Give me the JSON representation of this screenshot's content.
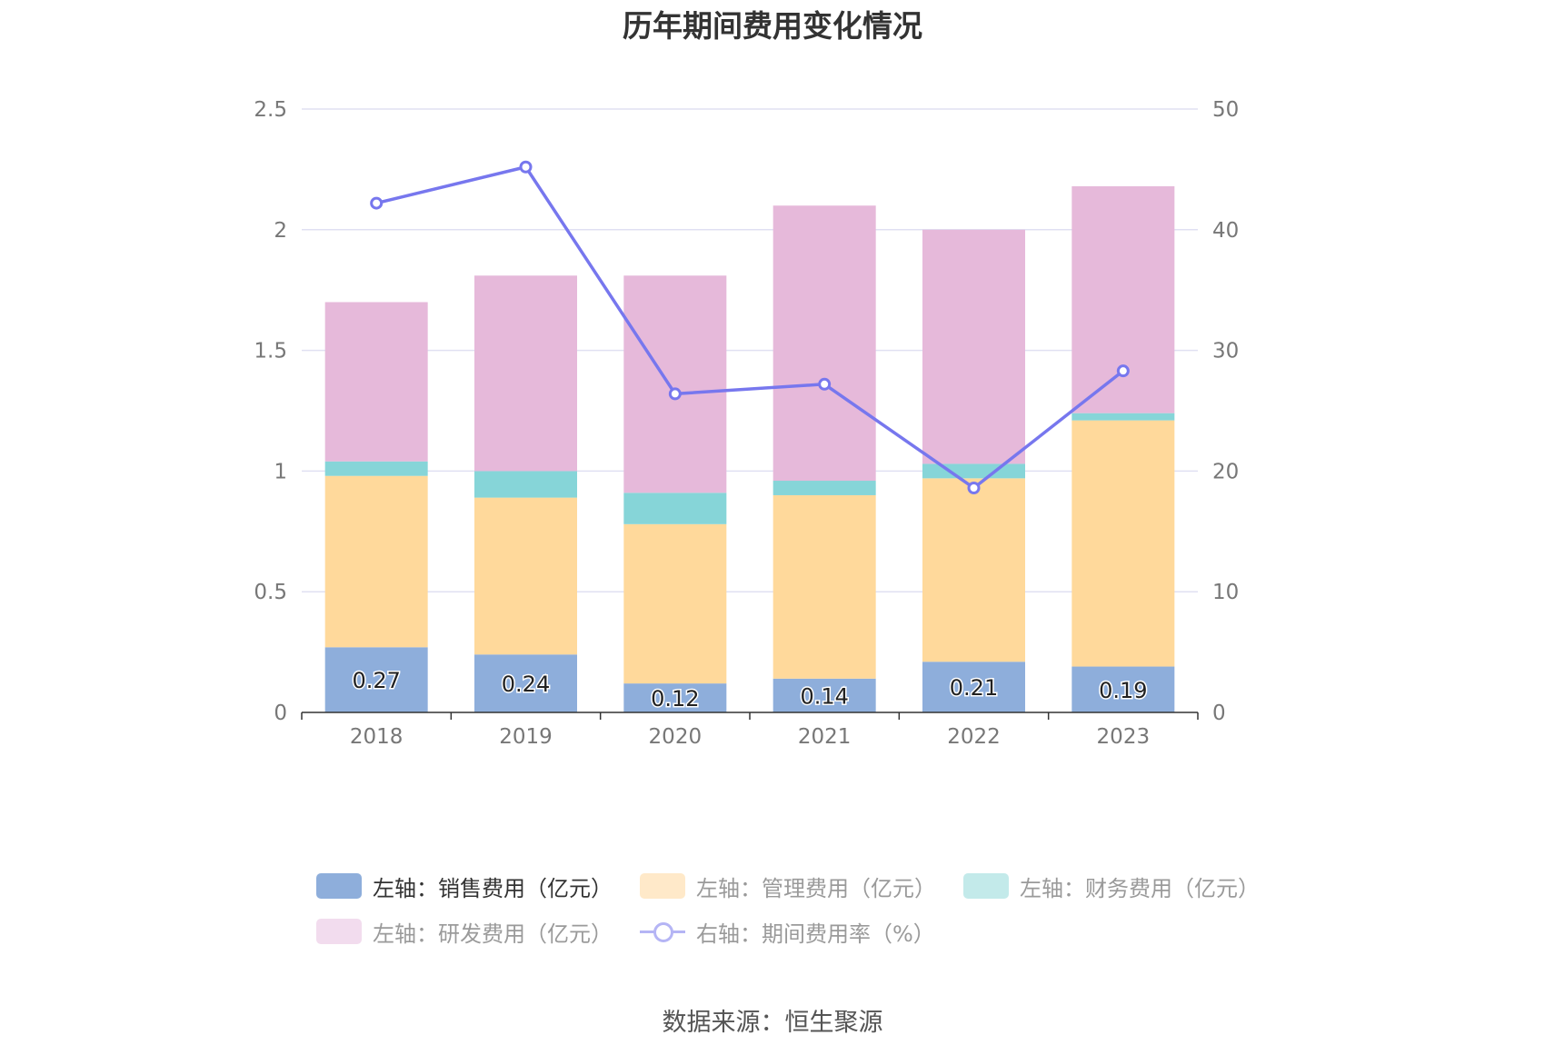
{
  "title": "历年期间费用变化情况",
  "source": "数据来源：恒生聚源",
  "colors": {
    "sales": "#8eaedb",
    "admin": "#ffd99b",
    "finance": "#86d5d8",
    "rnd": "#e6b9da",
    "rate": "#7777ee",
    "grid": "#e0e0f2",
    "axis": "#333333",
    "tick": "#777777"
  },
  "legend": [
    {
      "label": "左轴：销售费用（亿元）",
      "color": "#8eaedb",
      "kind": "bar",
      "dim": false
    },
    {
      "label": "左轴：管理费用（亿元）",
      "color": "#ffe9c9",
      "kind": "bar",
      "dim": true
    },
    {
      "label": "左轴：财务费用（亿元）",
      "color": "#c3eaea",
      "kind": "bar",
      "dim": true
    },
    {
      "label": "左轴：研发费用（亿元）",
      "color": "#f2dcee",
      "kind": "bar",
      "dim": true
    },
    {
      "label": "右轴：期间费用率（%）",
      "color": "#b5b5f5",
      "kind": "line",
      "dim": true
    }
  ],
  "chart_data": {
    "type": "bar",
    "stacked": true,
    "categories": [
      "2018",
      "2019",
      "2020",
      "2021",
      "2022",
      "2023"
    ],
    "series": [
      {
        "name": "左轴：销售费用（亿元）",
        "axis": "left",
        "color": "#8eaedb",
        "values": [
          0.27,
          0.24,
          0.12,
          0.14,
          0.21,
          0.19
        ],
        "show_labels": true
      },
      {
        "name": "左轴：管理费用（亿元）",
        "axis": "left",
        "color": "#ffd99b",
        "values": [
          0.71,
          0.65,
          0.66,
          0.76,
          0.76,
          1.02
        ],
        "show_labels": false
      },
      {
        "name": "左轴：财务费用（亿元）",
        "axis": "left",
        "color": "#86d5d8",
        "values": [
          0.06,
          0.11,
          0.13,
          0.06,
          0.06,
          0.03
        ],
        "show_labels": false
      },
      {
        "name": "左轴：研发费用（亿元）",
        "axis": "left",
        "color": "#e6b9da",
        "values": [
          0.66,
          0.81,
          0.9,
          1.14,
          0.97,
          0.94
        ],
        "show_labels": false
      },
      {
        "name": "右轴：期间费用率（%）",
        "axis": "right",
        "type": "line",
        "color": "#7777ee",
        "values": [
          42.2,
          45.2,
          26.4,
          27.2,
          18.6,
          28.3
        ]
      }
    ],
    "y_left": {
      "min": 0,
      "max": 2.5,
      "ticks": [
        "0",
        "0.5",
        "1",
        "1.5",
        "2",
        "2.5"
      ]
    },
    "y_right": {
      "min": 0,
      "max": 50,
      "ticks": [
        "0",
        "10",
        "20",
        "30",
        "40",
        "50"
      ]
    },
    "grid": true,
    "legend_position": "bottom"
  }
}
